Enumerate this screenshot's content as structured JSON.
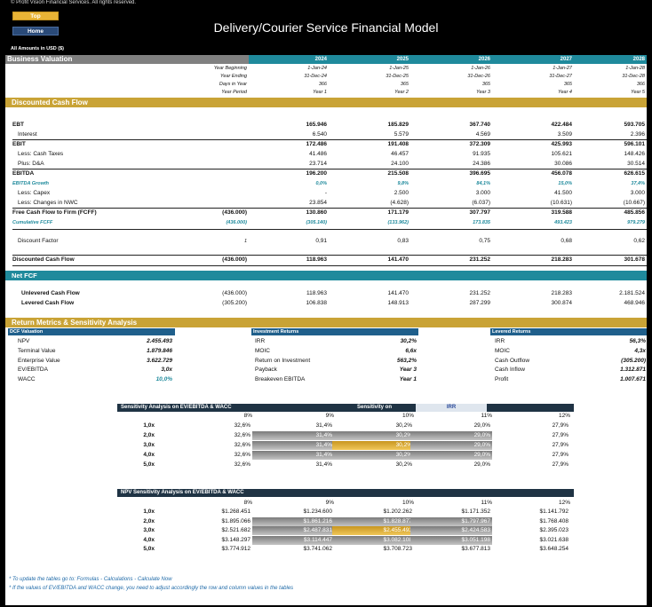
{
  "header": {
    "copyright": "© Profit Vision Financial Services. All rights reserved.",
    "top_button": "Top",
    "home_button": "Home",
    "title": "Delivery/Courier Service Financial Model",
    "amounts_note": "All Amounts in  USD ($)"
  },
  "business_valuation": {
    "title": "Business Valuation",
    "years": [
      "2024",
      "2025",
      "2026",
      "2027",
      "2028"
    ],
    "rows": [
      {
        "label": "Year Beginning",
        "values": [
          "1-Jan-24",
          "1-Jan-25",
          "1-Jan-26",
          "1-Jan-27",
          "1-Jan-28"
        ]
      },
      {
        "label": "Year Ending",
        "values": [
          "31-Dec-24",
          "31-Dec-25",
          "31-Dec-26",
          "31-Dec-27",
          "31-Dec-28"
        ]
      },
      {
        "label": "Days in Year",
        "values": [
          "366",
          "365",
          "365",
          "365",
          "366"
        ]
      },
      {
        "label": "Year Period",
        "values": [
          "Year 1",
          "Year 2",
          "Year 3",
          "Year 4",
          "Year 5"
        ]
      }
    ]
  },
  "dcf": {
    "title": "Discounted Cash Flow",
    "ebt": {
      "label": "EBT",
      "values": [
        "165.946",
        "185.829",
        "367.740",
        "422.484",
        "593.705"
      ]
    },
    "interest": {
      "label": "Interest",
      "values": [
        "6.540",
        "5.579",
        "4.569",
        "3.509",
        "2.396"
      ]
    },
    "ebit": {
      "label": "EBIT",
      "values": [
        "172.486",
        "191.408",
        "372.309",
        "425.993",
        "596.101"
      ]
    },
    "taxes": {
      "label": "Less: Cash Taxes",
      "values": [
        "41.486",
        "46.457",
        "91.935",
        "105.621",
        "148.426"
      ]
    },
    "da": {
      "label": "Plus: D&A",
      "values": [
        "23.714",
        "24.100",
        "24.386",
        "30.086",
        "30.514"
      ]
    },
    "ebitda": {
      "label": "EBITDA",
      "values": [
        "196.200",
        "215.508",
        "396.695",
        "456.078",
        "626.615"
      ]
    },
    "ebitda_growth": {
      "label": "EBITDA Growth",
      "values": [
        "0,0%",
        "9,8%",
        "84,1%",
        "15,0%",
        "37,4%"
      ]
    },
    "capex": {
      "label": "Less: Capex",
      "values": [
        "-",
        "2.500",
        "3.000",
        "41.500",
        "3.000"
      ]
    },
    "nwc": {
      "label": "Less: Changes in NWC",
      "values": [
        "23.854",
        "(4.628)",
        "(6.037)",
        "(10.631)",
        "(10.667)"
      ]
    },
    "fcff": {
      "label": "Free Cash Flow to Firm (FCFF)",
      "initial": "(436.000)",
      "values": [
        "130.860",
        "171.179",
        "307.797",
        "319.588",
        "485.856"
      ]
    },
    "cum_fcff": {
      "label": "Cumulative FCFF",
      "initial": "(436.000)",
      "values": [
        "(305.140)",
        "(133.962)",
        "173.835",
        "493.423",
        "979.279"
      ]
    },
    "discount_factor": {
      "label": "Discount Factor",
      "initial": "1",
      "values": [
        "0,91",
        "0,83",
        "0,75",
        "0,68",
        "0,62"
      ]
    },
    "dcf_row": {
      "label": "Discounted Cash Flow",
      "initial": "(436.000)",
      "values": [
        "118.963",
        "141.470",
        "231.252",
        "218.283",
        "301.678"
      ]
    }
  },
  "net_fcf": {
    "title": "Net FCF",
    "unlevered": {
      "label": "Unlevered Cash Flow",
      "initial": "(436.000)",
      "values": [
        "118.963",
        "141.470",
        "231.252",
        "218.283",
        "2.181.524"
      ]
    },
    "levered": {
      "label": "Levered Cash Flow",
      "initial": "(305.200)",
      "values": [
        "106.838",
        "148.913",
        "287.299",
        "300.874",
        "468.946"
      ]
    }
  },
  "return_metrics": {
    "title": "Return Metrics & Sensitivity Analysis",
    "dcf_valuation": {
      "title": "DCF Valuation",
      "rows": [
        {
          "label": "NPV",
          "value": "2.455.493"
        },
        {
          "label": "Terminal Value",
          "value": "1.879.846"
        },
        {
          "label": "Enterprise Value",
          "value": "3.622.729"
        },
        {
          "label": "EV/EBITDA",
          "value": "3,0x"
        },
        {
          "label": "WACC",
          "value": "10,0%"
        }
      ]
    },
    "investment_returns": {
      "title": "Investment Returns",
      "rows": [
        {
          "label": "IRR",
          "value": "30,2%"
        },
        {
          "label": "MOIC",
          "value": "6,6x"
        },
        {
          "label": "Return on Investment",
          "value": "563,2%"
        },
        {
          "label": "Payback",
          "value": "Year 3"
        },
        {
          "label": "Breakeven EBITDA",
          "value": "Year 1"
        }
      ]
    },
    "levered_returns": {
      "title": "Levered Returns",
      "rows": [
        {
          "label": "IRR",
          "value": "56,3%"
        },
        {
          "label": "MOIC",
          "value": "4,3x"
        },
        {
          "label": "Cash Outflow",
          "value": "(305.200)"
        },
        {
          "label": "Cash Inflow",
          "value": "1.312.871"
        },
        {
          "label": "Profit",
          "value": "1.007.671"
        }
      ]
    }
  },
  "sens1": {
    "title": "Sensitivity Analysis on EV/EBITDA & WACC",
    "sens_on_label": "Sensitivity on",
    "sens_on_value": "IRR",
    "cols": [
      "8%",
      "9%",
      "10%",
      "11%",
      "12%"
    ],
    "rows": [
      {
        "label": "1,0x",
        "values": [
          "32,6%",
          "31,4%",
          "30,2%",
          "29,0%",
          "27,9%"
        ]
      },
      {
        "label": "2,0x",
        "values": [
          "32,6%",
          "31,4%",
          "30,2%",
          "29,0%",
          "27,9%"
        ]
      },
      {
        "label": "3,0x",
        "values": [
          "32,6%",
          "31,4%",
          "30,2%",
          "29,0%",
          "27,9%"
        ]
      },
      {
        "label": "4,0x",
        "values": [
          "32,6%",
          "31,4%",
          "30,2%",
          "29,0%",
          "27,9%"
        ]
      },
      {
        "label": "5,0x",
        "values": [
          "32,6%",
          "31,4%",
          "30,2%",
          "29,0%",
          "27,9%"
        ]
      }
    ]
  },
  "sens2": {
    "title": "NPV Sensitivity Analysis on EV/EBITDA & WACC",
    "cols": [
      "8%",
      "9%",
      "10%",
      "11%",
      "12%"
    ],
    "rows": [
      {
        "label": "1,0x",
        "values": [
          "$1.268.451",
          "$1.234.600",
          "$1.202.262",
          "$1.171.352",
          "$1.141.792"
        ]
      },
      {
        "label": "2,0x",
        "values": [
          "$1.895.066",
          "$1.861.216",
          "$1.828.877",
          "$1.797.967",
          "$1.768.408"
        ]
      },
      {
        "label": "3,0x",
        "values": [
          "$2.521.682",
          "$2.487.831",
          "$2.455.493",
          "$2.424.583",
          "$2.395.023"
        ]
      },
      {
        "label": "4,0x",
        "values": [
          "$3.148.297",
          "$3.114.447",
          "$3.082.108",
          "$3.051.198",
          "$3.021.638"
        ]
      },
      {
        "label": "5,0x",
        "values": [
          "$3.774.912",
          "$3.741.062",
          "$3.708.723",
          "$3.677.813",
          "$3.648.254"
        ]
      }
    ]
  },
  "notes": [
    "* To update the tables go to: Formulas - Calculations - Calculate Now",
    "* If the values of EV/EBITDA and WACC change, you need to adjust accordingly the row and column values in the tables"
  ]
}
